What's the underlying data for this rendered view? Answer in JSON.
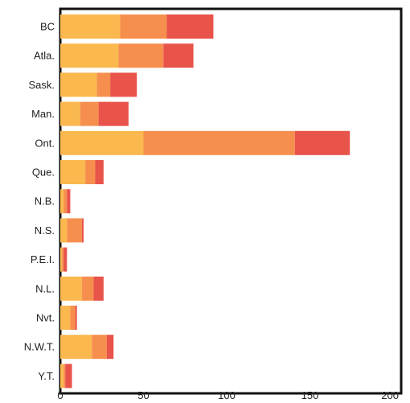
{
  "chart_data": {
    "type": "bar",
    "orientation": "horizontal",
    "stacked": true,
    "categories": [
      "BC",
      "Atla.",
      "Sask.",
      "Man.",
      "Ont.",
      "Que.",
      "N.B.",
      "N.S.",
      "P.E.I.",
      "N.L.",
      "Nvt.",
      "N.W.T.",
      "Y.T."
    ],
    "series": [
      {
        "color": "#fbb84f",
        "values": [
          36,
          35,
          22,
          12,
          50,
          15,
          2,
          4,
          1,
          13,
          6,
          19,
          2
        ]
      },
      {
        "color": "#f68f4e",
        "values": [
          28,
          27,
          8,
          11,
          91,
          6,
          2,
          9,
          1,
          7,
          3,
          9,
          1
        ]
      },
      {
        "color": "#e8534a",
        "values": [
          28,
          18,
          16,
          18,
          33,
          5,
          2,
          1,
          2,
          6,
          1,
          4,
          4
        ]
      }
    ],
    "xlim": [
      0,
      200
    ],
    "xticks": [
      0,
      50,
      100,
      150,
      200
    ],
    "grid": false
  }
}
